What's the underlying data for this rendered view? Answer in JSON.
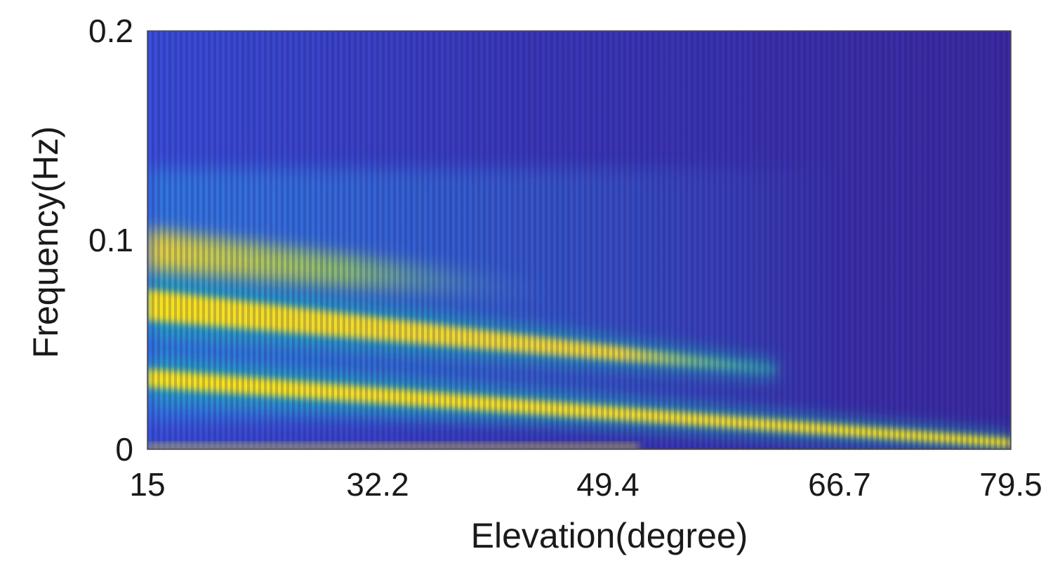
{
  "chart_data": {
    "type": "heatmap",
    "title": "",
    "xlabel": "Elevation(degree)",
    "ylabel": "Frequency(Hz)",
    "xlim": [
      15,
      79.5
    ],
    "ylim": [
      0,
      0.2
    ],
    "x_ticks": [
      {
        "value": 15,
        "label": "15"
      },
      {
        "value": 32.2,
        "label": "32.2"
      },
      {
        "value": 49.4,
        "label": "49.4"
      },
      {
        "value": 66.7,
        "label": "66.7"
      },
      {
        "value": 79.5,
        "label": "79.5"
      }
    ],
    "y_ticks": [
      {
        "value": 0,
        "label": "0"
      },
      {
        "value": 0.1,
        "label": "0.1"
      },
      {
        "value": 0.2,
        "label": "0.2"
      }
    ],
    "colormap": "parula",
    "colors": {
      "background_low": "#3b2aa0",
      "mid": "#2f8fe6",
      "teal": "#1fbfb0",
      "high": "#f7e21c"
    },
    "ridges": [
      {
        "name": "main-ridge",
        "x": [
          15,
          79.5
        ],
        "y": [
          0.034,
          0.003
        ],
        "intensity": 1.0
      },
      {
        "name": "upper-ridge",
        "x": [
          15,
          62
        ],
        "y": [
          0.069,
          0.038
        ],
        "intensity": 0.85
      },
      {
        "name": "top-band",
        "x": [
          15,
          45
        ],
        "y": [
          0.095,
          0.075
        ],
        "intensity": 0.6
      }
    ],
    "grid": false,
    "legend": "none"
  }
}
